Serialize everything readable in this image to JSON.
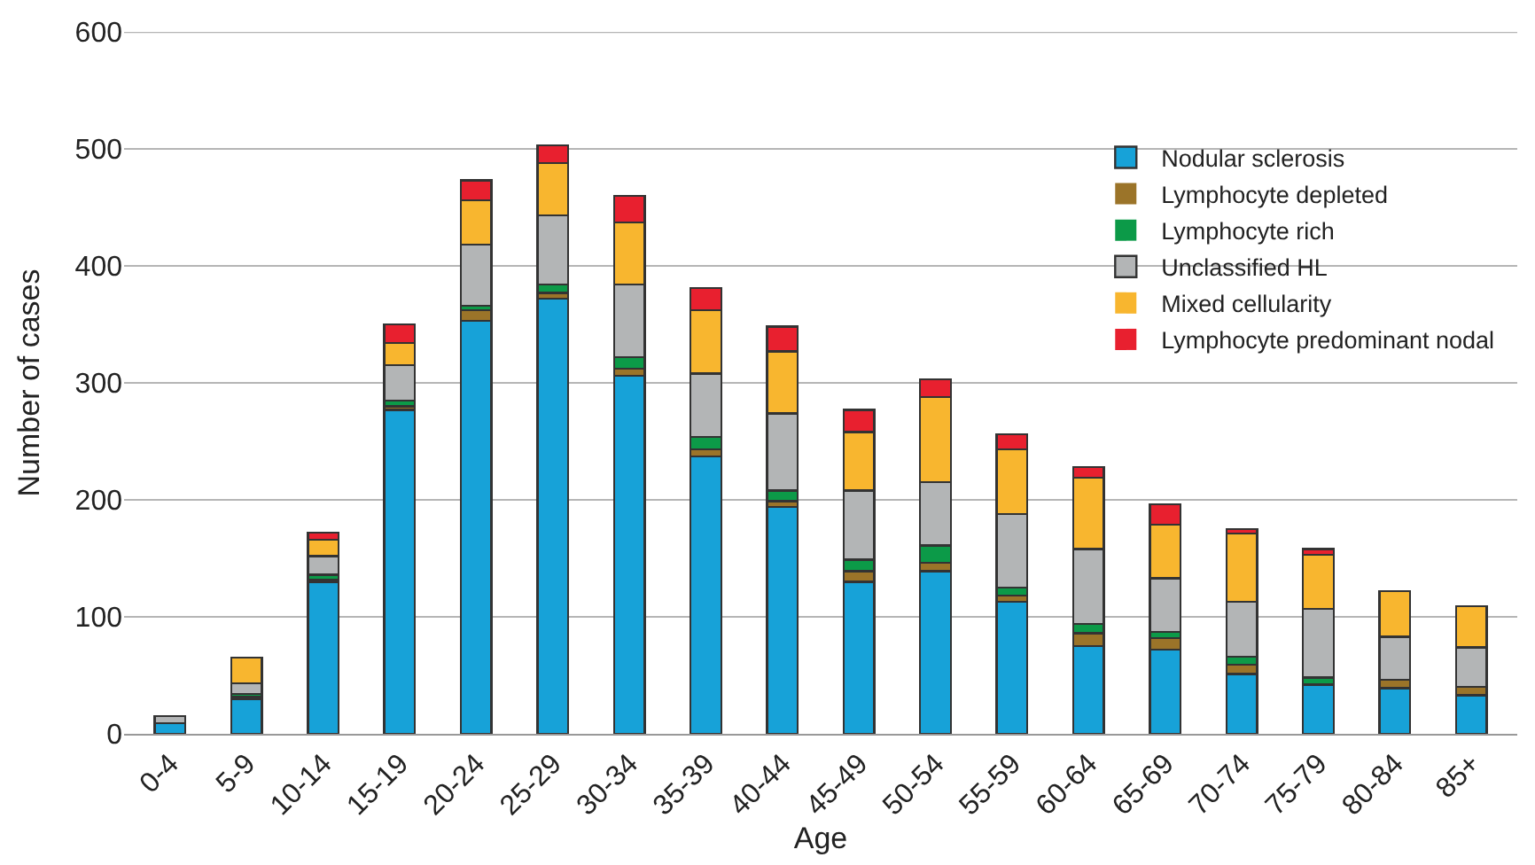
{
  "chart_data": {
    "type": "bar",
    "stacked": true,
    "xlabel": "Age",
    "ylabel": "Number of cases",
    "categories": [
      "0-4",
      "5-9",
      "10-14",
      "15-19",
      "20-24",
      "25-29",
      "30-34",
      "35-39",
      "40-44",
      "45-49",
      "50-54",
      "55-59",
      "60-64",
      "65-69",
      "70-74",
      "75-79",
      "80-84",
      "85+"
    ],
    "series": [
      {
        "name": "Nodular sclerosis",
        "color": "#17a2d8",
        "values": [
          9,
          30,
          130,
          277,
          353,
          372,
          306,
          237,
          194,
          130,
          139,
          113,
          75,
          72,
          51,
          42,
          39,
          33
        ]
      },
      {
        "name": "Lymphocyte depleted",
        "color": "#9b7429",
        "values": [
          0,
          2,
          2,
          3,
          9,
          5,
          6,
          6,
          5,
          9,
          7,
          5,
          11,
          10,
          8,
          0,
          7,
          7
        ]
      },
      {
        "name": "Lymphocyte rich",
        "color": "#0c9a48",
        "values": [
          0,
          2,
          4,
          5,
          4,
          7,
          10,
          11,
          9,
          10,
          15,
          7,
          8,
          5,
          7,
          6,
          0,
          0
        ]
      },
      {
        "name": "Unclassified HL",
        "color": "#b3b5b6",
        "values": [
          6,
          9,
          16,
          30,
          52,
          59,
          62,
          54,
          66,
          59,
          54,
          63,
          64,
          46,
          47,
          59,
          37,
          34
        ]
      },
      {
        "name": "Mixed cellularity",
        "color": "#f8b62f",
        "values": [
          0,
          22,
          14,
          19,
          38,
          45,
          53,
          54,
          53,
          50,
          73,
          55,
          61,
          46,
          58,
          46,
          39,
          35
        ]
      },
      {
        "name": "Lymphocyte predominant nodal",
        "color": "#e8202f",
        "values": [
          0,
          0,
          6,
          16,
          17,
          15,
          23,
          19,
          21,
          19,
          15,
          13,
          9,
          17,
          4,
          5,
          0,
          0
        ]
      }
    ],
    "ylim": [
      0,
      600
    ],
    "yticks": [
      0,
      100,
      200,
      300,
      400,
      500,
      600
    ],
    "grid": "y",
    "legend": "top right"
  }
}
